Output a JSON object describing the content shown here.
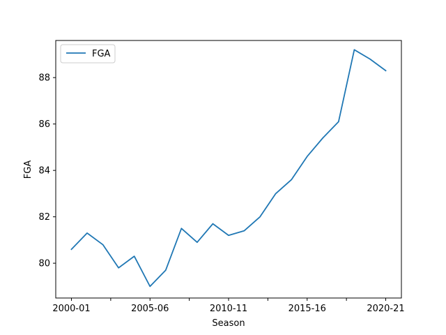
{
  "chart_data": {
    "type": "line",
    "xlabel": "Season",
    "ylabel": "FGA",
    "x": [
      "2000-01",
      "2001-02",
      "2002-03",
      "2003-04",
      "2004-05",
      "2005-06",
      "2006-07",
      "2007-08",
      "2008-09",
      "2009-10",
      "2010-11",
      "2011-12",
      "2012-13",
      "2013-14",
      "2014-15",
      "2015-16",
      "2016-17",
      "2017-18",
      "2018-19",
      "2019-20",
      "2020-21"
    ],
    "x_tick_labels": [
      "2000-01",
      "",
      "2005-06",
      "",
      "2010-11",
      "",
      "2015-16",
      "",
      "2020-21"
    ],
    "y_ticks": [
      80,
      82,
      84,
      86,
      88
    ],
    "ylim": [
      78.5,
      89.6
    ],
    "series": [
      {
        "name": "FGA",
        "color": "#1f77b4",
        "values": [
          80.6,
          81.3,
          80.8,
          79.8,
          80.3,
          79.0,
          79.7,
          81.5,
          80.9,
          81.7,
          81.2,
          81.4,
          82.0,
          83.0,
          83.6,
          84.6,
          85.4,
          86.1,
          89.2,
          88.8,
          88.3
        ]
      }
    ],
    "legend": {
      "position": "upper-left",
      "entries": [
        "FGA"
      ]
    },
    "grid": false
  }
}
